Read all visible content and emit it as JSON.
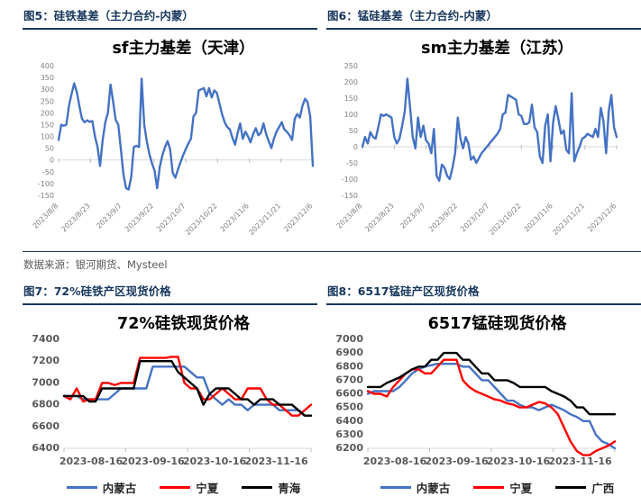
{
  "page": {
    "source_note": "数据来源：银河期货、Mysteel"
  },
  "figures": [
    {
      "label": "图5：硅铁基差（主力合约-内蒙）"
    },
    {
      "label": "图6：锰硅基差（主力合约-内蒙）"
    },
    {
      "label": "图7：72%硅铁产区现货价格"
    },
    {
      "label": "图8：6517锰硅产区现货价格"
    }
  ],
  "colors": {
    "accent_navy": "#17375E",
    "line_blue": "#4472C4",
    "line_red": "#FF0000",
    "line_black": "#000000",
    "axis_gray": "#808080",
    "axis_dark_gray": "#595959",
    "axis_line_gray": "#D9D9D9"
  },
  "chart_data": [
    {
      "type": "line",
      "title": "sf主力基差（天津）",
      "xlabel": "",
      "ylabel": "",
      "ylim": [
        -150,
        400
      ],
      "yticks": [
        400,
        350,
        300,
        250,
        200,
        150,
        100,
        50,
        0,
        -50,
        -100,
        -150
      ],
      "axis_cross": 0,
      "grid": false,
      "legend_position": "none",
      "x_tick_rotated": true,
      "x_tick_labels": [
        "2023/8/8",
        "2023/8/23",
        "2023/9/7",
        "2023/9/22",
        "2023/10/7",
        "2023/10/22",
        "2023/11/6",
        "2023/11/21",
        "2023/12/6"
      ],
      "series": [
        {
          "name": "",
          "color": "#4472C4",
          "values": [
            85,
            150,
            145,
            150,
            230,
            280,
            325,
            290,
            230,
            175,
            160,
            168,
            162,
            165,
            100,
            55,
            -25,
            85,
            160,
            200,
            320,
            250,
            170,
            150,
            45,
            -60,
            -120,
            -125,
            -70,
            55,
            60,
            55,
            345,
            150,
            80,
            25,
            -15,
            -45,
            -120,
            -30,
            20,
            55,
            80,
            45,
            -55,
            -75,
            -40,
            -10,
            20,
            45,
            70,
            90,
            185,
            200,
            295,
            300,
            305,
            270,
            305,
            265,
            295,
            285,
            240,
            195,
            160,
            140,
            130,
            95,
            65,
            115,
            155,
            90,
            120,
            100,
            75,
            110,
            135,
            105,
            115,
            155,
            110,
            80,
            50,
            90,
            120,
            140,
            160,
            130,
            120,
            105,
            85,
            175,
            195,
            180,
            230,
            260,
            245,
            185,
            -25
          ]
        }
      ]
    },
    {
      "type": "line",
      "title": "sm主力基差（江苏）",
      "xlabel": "",
      "ylabel": "",
      "ylim": [
        -150,
        250
      ],
      "yticks": [
        250,
        200,
        150,
        100,
        50,
        0,
        -50,
        -100,
        -150
      ],
      "axis_cross": 0,
      "grid": false,
      "legend_position": "none",
      "x_tick_rotated": true,
      "x_tick_labels": [
        "2023/8/8",
        "2023/8/23",
        "2023/9/7",
        "2023/9/22",
        "2023/10/7",
        "2023/10/22",
        "2023/11/6",
        "2023/11/21",
        "2023/12/6"
      ],
      "series": [
        {
          "name": "",
          "color": "#4472C4",
          "values": [
            0,
            30,
            10,
            45,
            30,
            25,
            60,
            100,
            95,
            100,
            95,
            90,
            30,
            10,
            25,
            65,
            110,
            210,
            120,
            30,
            -5,
            90,
            30,
            65,
            20,
            10,
            -20,
            55,
            -90,
            -105,
            -55,
            -65,
            -90,
            -100,
            -65,
            -20,
            90,
            25,
            -5,
            30,
            10,
            -40,
            -30,
            -50,
            -35,
            -20,
            -10,
            0,
            10,
            20,
            30,
            40,
            55,
            100,
            105,
            160,
            155,
            150,
            145,
            100,
            95,
            70,
            70,
            75,
            130,
            60,
            45,
            -30,
            -50,
            65,
            100,
            -45,
            75,
            125,
            85,
            40,
            50,
            -10,
            -20,
            165,
            -45,
            -20,
            0,
            25,
            30,
            40,
            35,
            30,
            55,
            30,
            120,
            80,
            -20,
            110,
            160,
            60,
            30
          ]
        }
      ]
    },
    {
      "type": "line",
      "title": "72%硅铁现货价格",
      "xlabel": "",
      "ylabel": "",
      "ylim": [
        6400,
        7400
      ],
      "yticks": [
        7400,
        7200,
        7000,
        6800,
        6600,
        6400
      ],
      "grid": false,
      "legend_position": "bottom",
      "x_tick_rotated": false,
      "x_tick_labels": [
        "2023-08-16",
        "2023-09-16",
        "2023-10-16",
        "2023-11-16"
      ],
      "series": [
        {
          "name": "内蒙古",
          "color": "#4472C4",
          "values": [
            6880,
            6880,
            6880,
            6850,
            6850,
            6850,
            6850,
            6850,
            6900,
            6950,
            6950,
            6950,
            6950,
            6950,
            7150,
            7150,
            7150,
            7150,
            7150,
            7150,
            7100,
            7050,
            7050,
            6900,
            6850,
            6800,
            6850,
            6800,
            6800,
            6750,
            6800,
            6800,
            6800,
            6800,
            6750,
            6750,
            6750,
            6750,
            6700,
            6700
          ]
        },
        {
          "name": "宁夏",
          "color": "#FF0000",
          "values": [
            6880,
            6850,
            6950,
            6830,
            6850,
            6850,
            7000,
            7000,
            6980,
            7000,
            7000,
            7000,
            7230,
            7230,
            7230,
            7230,
            7230,
            7240,
            7240,
            7000,
            6950,
            6950,
            6850,
            6850,
            6900,
            6950,
            6900,
            6850,
            6850,
            6950,
            6950,
            6950,
            6850,
            6800,
            6800,
            6750,
            6700,
            6700,
            6750,
            6800
          ]
        },
        {
          "name": "青海",
          "color": "#000000",
          "values": [
            6880,
            6880,
            6880,
            6880,
            6830,
            6830,
            6950,
            6950,
            6950,
            6950,
            6950,
            6950,
            7200,
            7200,
            7200,
            7200,
            7200,
            7200,
            7100,
            7050,
            7000,
            6950,
            6800,
            6900,
            6950,
            6950,
            6950,
            6900,
            6850,
            6850,
            6800,
            6850,
            6850,
            6850,
            6800,
            6800,
            6800,
            6750,
            6700,
            6700
          ]
        }
      ]
    },
    {
      "type": "line",
      "title": "6517锰硅现货价格",
      "xlabel": "",
      "ylabel": "",
      "ylim": [
        6200,
        7000
      ],
      "yticks": [
        7000,
        6900,
        6800,
        6700,
        6600,
        6500,
        6400,
        6300,
        6200
      ],
      "grid": false,
      "legend_position": "bottom",
      "x_tick_rotated": false,
      "x_tick_labels": [
        "2023-08-16",
        "2023-09-16",
        "2023-10-16",
        "2023-11-16"
      ],
      "series": [
        {
          "name": "内蒙古",
          "color": "#4472C4",
          "values": [
            6600,
            6620,
            6620,
            6620,
            6620,
            6650,
            6700,
            6750,
            6780,
            6800,
            6810,
            6820,
            6820,
            6820,
            6820,
            6800,
            6800,
            6750,
            6700,
            6700,
            6650,
            6600,
            6550,
            6550,
            6520,
            6500,
            6500,
            6480,
            6500,
            6520,
            6500,
            6480,
            6450,
            6430,
            6400,
            6400,
            6300,
            6250,
            6230,
            6200
          ]
        },
        {
          "name": "宁夏",
          "color": "#FF0000",
          "values": [
            6620,
            6600,
            6600,
            6580,
            6650,
            6700,
            6750,
            6780,
            6780,
            6750,
            6750,
            6800,
            6850,
            6850,
            6850,
            6700,
            6650,
            6620,
            6600,
            6580,
            6560,
            6550,
            6530,
            6520,
            6500,
            6500,
            6520,
            6540,
            6530,
            6500,
            6450,
            6350,
            6250,
            6180,
            6150,
            6150,
            6180,
            6200,
            6220,
            6250
          ]
        },
        {
          "name": "广西",
          "color": "#000000",
          "values": [
            6650,
            6650,
            6650,
            6680,
            6700,
            6720,
            6750,
            6780,
            6800,
            6800,
            6850,
            6850,
            6900,
            6900,
            6900,
            6850,
            6850,
            6800,
            6750,
            6750,
            6700,
            6700,
            6700,
            6680,
            6650,
            6650,
            6650,
            6650,
            6650,
            6620,
            6600,
            6580,
            6550,
            6500,
            6500,
            6450,
            6450,
            6450,
            6450,
            6450
          ]
        }
      ]
    }
  ]
}
